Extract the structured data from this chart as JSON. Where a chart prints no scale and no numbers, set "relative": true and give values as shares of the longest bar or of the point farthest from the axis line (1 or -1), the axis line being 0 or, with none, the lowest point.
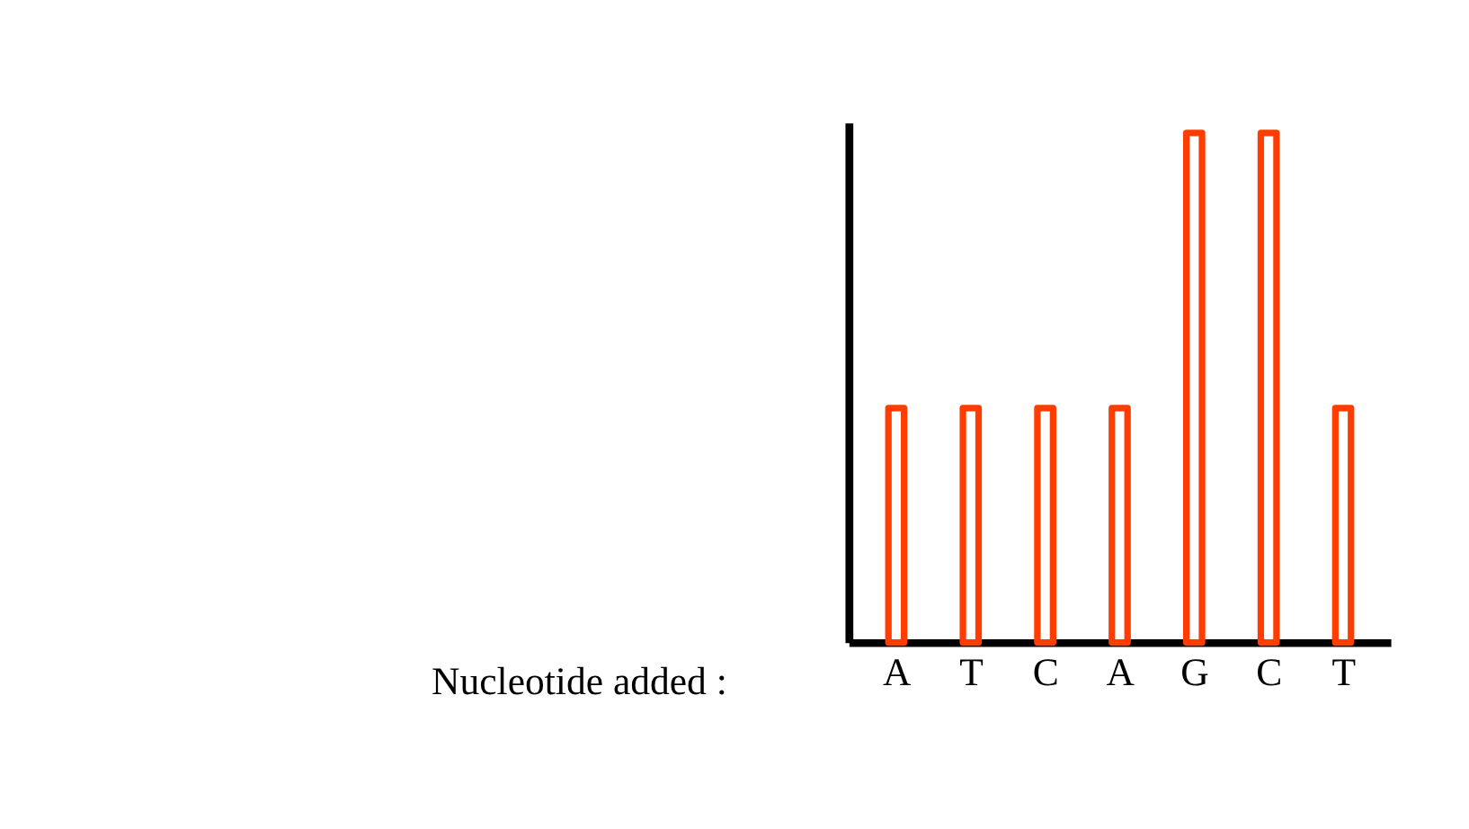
{
  "chart_data": {
    "type": "bar",
    "relative": true,
    "xlabel": "Nucleotide added :",
    "categories": [
      "A",
      "T",
      "C",
      "A",
      "G",
      "C",
      "T"
    ],
    "values": [
      0.46,
      0.46,
      0.46,
      0.46,
      1,
      1,
      0.46
    ],
    "color": "#ff3d00",
    "grid": false,
    "legend": false
  }
}
